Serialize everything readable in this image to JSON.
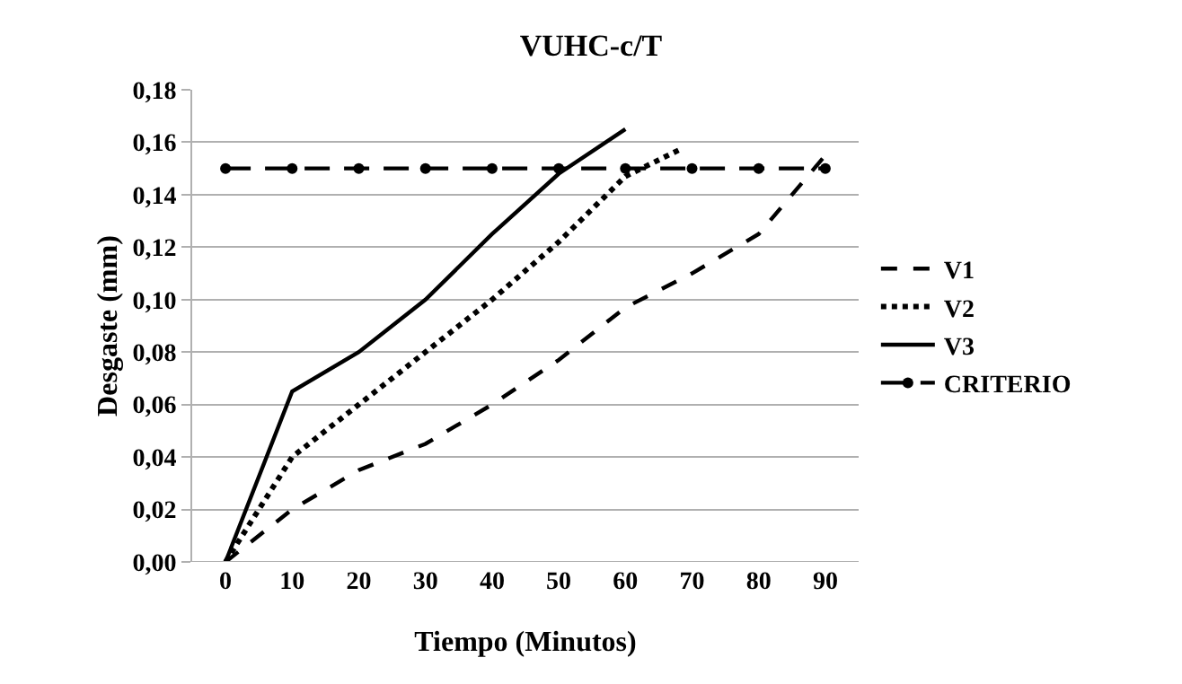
{
  "chart_data": {
    "type": "line",
    "title": "VUHC-c/T",
    "xlabel": "Tiempo (Minutos)",
    "ylabel": "Desgaste (mm)",
    "xlim": [
      -5,
      95
    ],
    "xticks": [
      0,
      10,
      20,
      30,
      40,
      50,
      60,
      70,
      80,
      90
    ],
    "ylim": [
      0,
      0.18
    ],
    "yticks": [
      {
        "value": 0,
        "label": "0,00"
      },
      {
        "value": 0.02,
        "label": "0,02"
      },
      {
        "value": 0.04,
        "label": "0,04"
      },
      {
        "value": 0.06,
        "label": "0,06"
      },
      {
        "value": 0.08,
        "label": "0,08"
      },
      {
        "value": 0.1,
        "label": "0,10"
      },
      {
        "value": 0.12,
        "label": "0,12"
      },
      {
        "value": 0.14,
        "label": "0,14"
      },
      {
        "value": 0.16,
        "label": "0,16"
      },
      {
        "value": 0.18,
        "label": "0,18"
      }
    ],
    "grid": "y",
    "legend": "right",
    "series": [
      {
        "name": "V1",
        "color": "#000000",
        "line_style": "dashed",
        "marker": "none",
        "x": [
          0,
          10,
          20,
          30,
          40,
          50,
          60,
          70,
          80,
          90
        ],
        "values": [
          0,
          0.02,
          0.035,
          0.045,
          0.06,
          0.077,
          0.097,
          0.11,
          0.125,
          0.155
        ]
      },
      {
        "name": "V2",
        "color": "#000000",
        "line_style": "dotted",
        "marker": "none",
        "x": [
          0,
          10,
          20,
          30,
          40,
          50,
          60,
          68
        ],
        "values": [
          0,
          0.04,
          0.06,
          0.08,
          0.1,
          0.122,
          0.147,
          0.157
        ]
      },
      {
        "name": "V3",
        "color": "#000000",
        "line_style": "solid",
        "marker": "none",
        "x": [
          0,
          10,
          20,
          30,
          40,
          50,
          60
        ],
        "values": [
          0,
          0.065,
          0.08,
          0.1,
          0.125,
          0.148,
          0.165
        ]
      },
      {
        "name": "CRITERIO",
        "color": "#000000",
        "line_style": "dashed",
        "marker": "circle",
        "x": [
          0,
          10,
          20,
          30,
          40,
          50,
          60,
          70,
          80,
          90
        ],
        "values": [
          0.15,
          0.15,
          0.15,
          0.15,
          0.15,
          0.15,
          0.15,
          0.15,
          0.15,
          0.15
        ]
      }
    ]
  }
}
